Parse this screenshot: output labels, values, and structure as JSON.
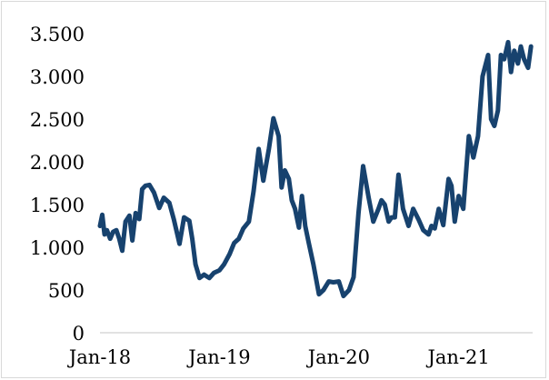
{
  "chart_data": {
    "type": "line",
    "title": "",
    "xlabel": "",
    "ylabel": "",
    "ylim": [
      0,
      3500
    ],
    "y_ticks": [
      0,
      500,
      1000,
      1500,
      2000,
      2500,
      3000,
      3500
    ],
    "y_tick_labels": [
      "0",
      "500",
      "1.000",
      "1.500",
      "2.000",
      "2.500",
      "3.000",
      "3.500"
    ],
    "x_range": [
      "2018-01-01",
      "2021-08-15"
    ],
    "x_ticks": [
      "2018-01-01",
      "2019-01-01",
      "2020-01-01",
      "2021-01-01"
    ],
    "x_tick_labels": [
      "Jan-18",
      "Jan-19",
      "Jan-20",
      "Jan-21"
    ],
    "grid": false,
    "line_color": "#17426e",
    "series": [
      {
        "x": [
          "2018-01-01",
          "2018-01-08",
          "2018-01-15",
          "2018-01-22",
          "2018-02-01",
          "2018-02-10",
          "2018-02-20",
          "2018-03-01",
          "2018-03-10",
          "2018-03-20",
          "2018-04-01",
          "2018-04-10",
          "2018-04-20",
          "2018-05-01",
          "2018-05-10",
          "2018-05-20",
          "2018-06-01",
          "2018-06-15",
          "2018-07-01",
          "2018-07-15",
          "2018-08-01",
          "2018-08-15",
          "2018-09-01",
          "2018-09-15",
          "2018-10-01",
          "2018-10-10",
          "2018-10-20",
          "2018-11-01",
          "2018-11-15",
          "2018-12-01",
          "2018-12-15",
          "2019-01-01",
          "2019-01-15",
          "2019-02-01",
          "2019-02-15",
          "2019-03-01",
          "2019-03-15",
          "2019-04-01",
          "2019-04-15",
          "2019-05-01",
          "2019-05-15",
          "2019-06-01",
          "2019-06-15",
          "2019-07-01",
          "2019-07-10",
          "2019-07-20",
          "2019-08-01",
          "2019-08-10",
          "2019-08-20",
          "2019-09-01",
          "2019-09-10",
          "2019-09-20",
          "2019-10-01",
          "2019-10-15",
          "2019-11-01",
          "2019-11-15",
          "2019-12-01",
          "2019-12-15",
          "2020-01-01",
          "2020-01-15",
          "2020-02-01",
          "2020-02-15",
          "2020-03-01",
          "2020-03-15",
          "2020-04-01",
          "2020-04-15",
          "2020-05-01",
          "2020-05-10",
          "2020-05-20",
          "2020-06-01",
          "2020-06-10",
          "2020-06-20",
          "2020-07-01",
          "2020-07-15",
          "2020-08-01",
          "2020-08-15",
          "2020-09-01",
          "2020-09-15",
          "2020-10-01",
          "2020-10-10",
          "2020-10-20",
          "2020-11-01",
          "2020-11-15",
          "2020-12-01",
          "2020-12-10",
          "2020-12-20",
          "2021-01-01",
          "2021-01-15",
          "2021-02-01",
          "2021-02-15",
          "2021-03-01",
          "2021-03-15",
          "2021-04-01",
          "2021-04-10",
          "2021-04-20",
          "2021-05-01",
          "2021-05-10",
          "2021-05-20",
          "2021-06-01",
          "2021-06-10",
          "2021-06-20",
          "2021-07-01",
          "2021-07-10",
          "2021-07-20",
          "2021-08-01",
          "2021-08-10"
        ],
        "y": [
          1250,
          1380,
          1150,
          1200,
          1100,
          1180,
          1200,
          1100,
          960,
          1300,
          1370,
          1080,
          1400,
          1330,
          1680,
          1720,
          1730,
          1640,
          1460,
          1580,
          1520,
          1320,
          1040,
          1350,
          1310,
          1100,
          800,
          640,
          680,
          640,
          700,
          730,
          800,
          920,
          1050,
          1100,
          1220,
          1300,
          1650,
          2150,
          1780,
          2150,
          2510,
          2300,
          1700,
          1900,
          1800,
          1550,
          1450,
          1230,
          1600,
          1250,
          1050,
          800,
          450,
          500,
          600,
          590,
          600,
          430,
          500,
          650,
          1400,
          1950,
          1580,
          1300,
          1450,
          1550,
          1500,
          1300,
          1350,
          1350,
          1850,
          1450,
          1250,
          1450,
          1320,
          1200,
          1150,
          1250,
          1220,
          1450,
          1260,
          1800,
          1720,
          1300,
          1600,
          1450,
          2300,
          2050,
          2300,
          3000,
          3250,
          2500,
          2420,
          2600,
          3250,
          3200,
          3400,
          3050,
          3300,
          3150,
          3350,
          3200,
          3100,
          3350
        ]
      }
    ]
  }
}
